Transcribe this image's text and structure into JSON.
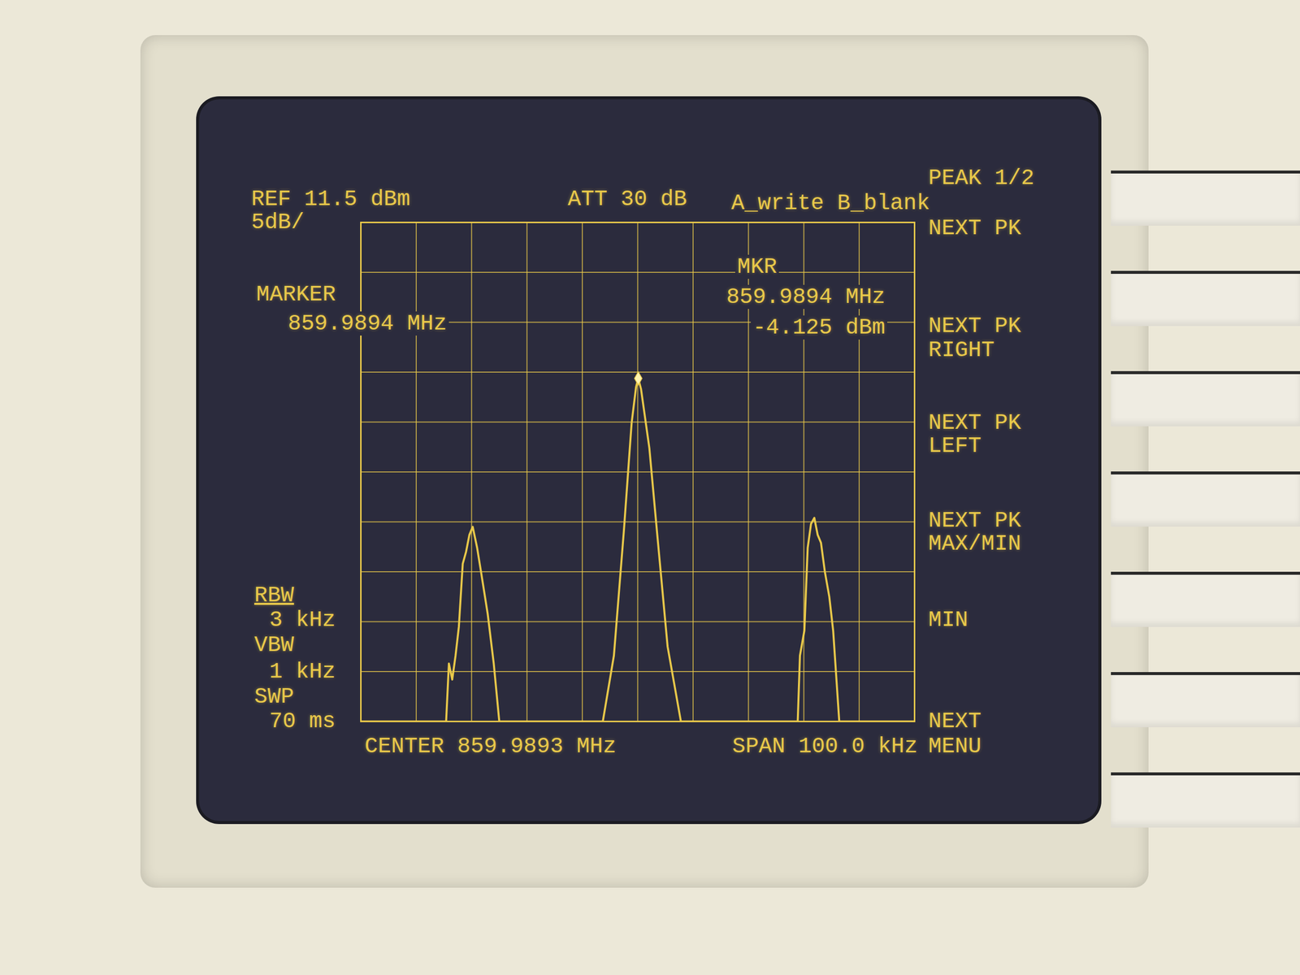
{
  "chart_data": {
    "type": "line",
    "color": "#e8c84a",
    "x": [
      859.9393,
      859.9547,
      859.9552,
      859.9558,
      859.9564,
      859.957,
      859.9577,
      859.9583,
      859.9589,
      859.9595,
      859.9603,
      859.961,
      859.9622,
      859.9633,
      859.9643,
      859.983,
      859.985,
      859.9868,
      859.9882,
      859.989,
      859.9894,
      859.9899,
      859.9914,
      859.9929,
      859.9947,
      859.9971,
      860.0182,
      860.0186,
      860.0194,
      860.02,
      860.0206,
      860.0212,
      860.0218,
      860.0224,
      860.0231,
      860.0239,
      860.0246,
      860.0257,
      860.0393
    ],
    "values": [
      -38.5,
      -38.5,
      -32.7,
      -34.3,
      -31.9,
      -29.0,
      -22.7,
      -21.5,
      -19.8,
      -19.0,
      -21.1,
      -23.5,
      -27.7,
      -32.7,
      -38.5,
      -38.5,
      -31.9,
      -19.4,
      -8.6,
      -5.0,
      -4.125,
      -5.2,
      -11.1,
      -20.2,
      -31.0,
      -38.5,
      -38.5,
      -31.9,
      -29.4,
      -21.1,
      -18.7,
      -18.1,
      -19.8,
      -20.6,
      -23.5,
      -26.0,
      -29.4,
      -38.5,
      -38.5
    ],
    "marker_position": {
      "x": 859.9894,
      "y": -4.125
    },
    "xlim": [
      859.9393,
      860.0393
    ],
    "xticks": [
      859.9393,
      859.9493,
      859.9593,
      859.9693,
      859.9793,
      859.9893,
      859.9993,
      860.0093,
      860.0193,
      860.0293,
      860.0393
    ],
    "ylim": [
      -38.5,
      11.5
    ],
    "yticks": [
      11.5,
      6.5,
      1.5,
      -3.5,
      -8.5,
      -13.5,
      -18.5,
      -23.5,
      -28.5,
      -33.5,
      -38.5
    ],
    "grid": true,
    "tick_labels": false,
    "annotations": [
      "REF 11.5 dBm",
      "5dB/",
      "ATT 30 dB",
      "A_write B_blank",
      "MARKER",
      "859.9894 MHz",
      "MKR",
      "859.9894 MHz",
      "-4.125 dBm",
      "RBW",
      "3 kHz",
      "VBW",
      "1 kHz",
      "SWP",
      "70 ms",
      "CENTER 859.9893 MHz",
      "SPAN 100.0 kHz",
      "PEAK 1/2",
      "NEXT PK",
      "NEXT PK",
      "RIGHT",
      "NEXT PK",
      "LEFT",
      "NEXT PK",
      "MAX/MIN",
      "MIN",
      "NEXT",
      "MENU"
    ]
  }
}
